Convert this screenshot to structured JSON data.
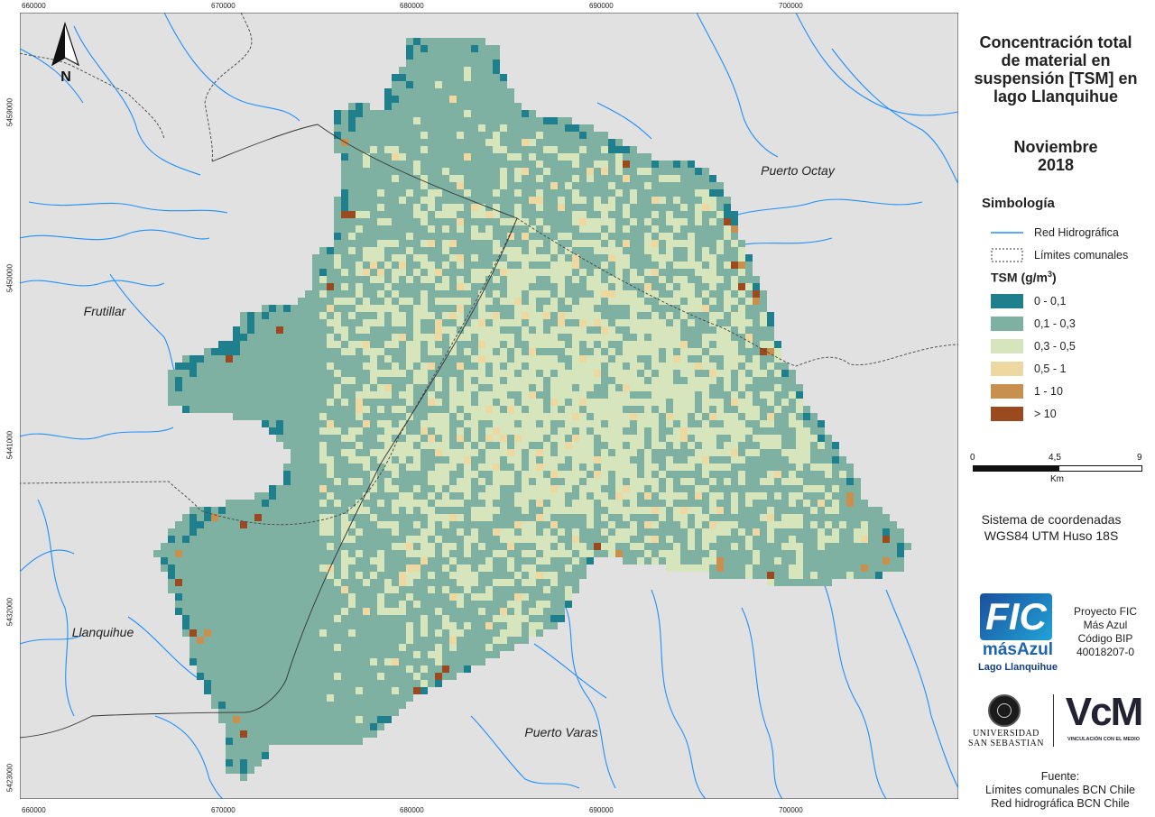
{
  "map": {
    "town_labels": [
      "Puerto Octay",
      "Frutillar",
      "Llanquihue",
      "Puerto Varas"
    ],
    "north_label": "N",
    "x_ticks": [
      "660000",
      "670000",
      "680000",
      "690000",
      "700000"
    ],
    "y_ticks": [
      "5459000",
      "5450000",
      "5441000",
      "5432000",
      "5423000"
    ],
    "colors": {
      "background": "#e1e1e1",
      "river": "#1e90ff",
      "tsm_0_01": "#1f7f8c",
      "tsm_01_03": "#7fb1a3",
      "tsm_03_05": "#d6e5bb",
      "tsm_05_1": "#ecd8a0",
      "tsm_1_10": "#c8904f",
      "tsm_gt10": "#9b4a1f"
    }
  },
  "sidebar": {
    "title_lines": [
      "Concentración total",
      "de material en",
      "suspensión [TSM] en",
      "lago Llanquihue"
    ],
    "date_lines": [
      "Noviembre",
      "2018"
    ],
    "legend_title": "Simbología",
    "legend_lines": [
      {
        "label": "Red Hidrográfica",
        "icon": "river-line-icon"
      },
      {
        "label": "Límites comunales",
        "icon": "dashed-boundary-icon"
      }
    ],
    "tsm_title": "TSM (g/m",
    "tsm_title_sup": "3",
    "tsm_title_end": ")",
    "tsm_classes": [
      {
        "label": "0 - 0,1",
        "color": "#1f7f8c"
      },
      {
        "label": "0,1 - 0,3",
        "color": "#7fb1a3"
      },
      {
        "label": "0,3 - 0,5",
        "color": "#d6e5bb"
      },
      {
        "label": "0,5 - 1",
        "color": "#ecd8a0"
      },
      {
        "label": "1 - 10",
        "color": "#c8904f"
      },
      {
        "label": "> 10",
        "color": "#9b4a1f"
      }
    ],
    "scale": {
      "labels": [
        "0",
        "4,5",
        "9"
      ],
      "unit": "Km"
    },
    "crs_lines": [
      "Sistema de coordenadas",
      "WGS84 UTM Huso 18S"
    ],
    "logo_fic": {
      "big": "FIC",
      "mid": "másAzul",
      "small": "Lago Llanquihue"
    },
    "project_lines": [
      "Proyecto FIC",
      "Más Azul",
      "Código BIP",
      "40018207-0"
    ],
    "uss_lines": [
      "UNIVERSIDAD",
      "SAN SEBASTIAN"
    ],
    "vcm": {
      "big": "VcM",
      "small": "VINCULACIÓN CON EL MEDIO"
    },
    "source_lines": [
      "Fuente:",
      "Límites comunales BCN Chile",
      "Red hidrográfica BCN Chile"
    ]
  }
}
